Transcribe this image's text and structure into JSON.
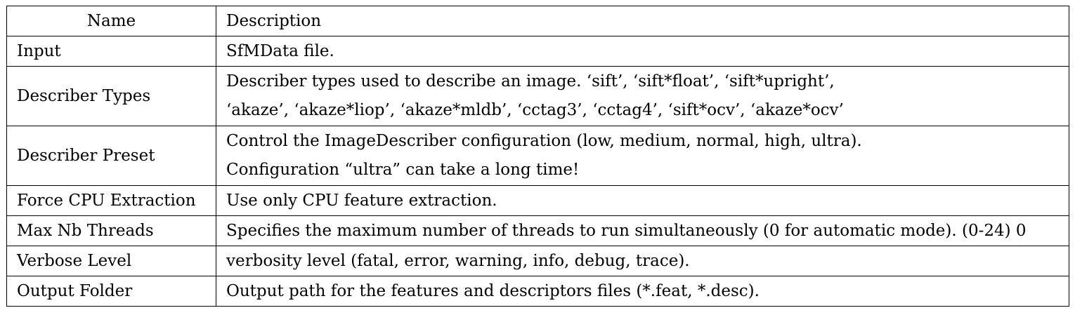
{
  "table": {
    "headers": {
      "name": "Name",
      "description": "Description"
    },
    "rows": [
      {
        "name": "Input",
        "desc": [
          "SfMData file."
        ]
      },
      {
        "name": "Describer Types",
        "desc": [
          "Describer types used to describe an image. ‘sift’, ‘sift*float’, ‘sift*upright’,",
          "‘akaze’, ‘akaze*liop’, ‘akaze*mldb’, ‘cctag3’, ‘cctag4’, ‘sift*ocv’, ‘akaze*ocv’"
        ]
      },
      {
        "name": "Describer Preset",
        "desc": [
          "Control the ImageDescriber configuration (low, medium, normal, high, ultra).",
          "Configuration “ultra” can take a long time!"
        ]
      },
      {
        "name": "Force CPU Extraction",
        "desc": [
          "Use only CPU feature extraction."
        ]
      },
      {
        "name": "Max Nb Threads",
        "desc": [
          "Specifies the maximum number of threads to run simultaneously (0 for automatic mode). (0-24) 0"
        ]
      },
      {
        "name": "Verbose Level",
        "desc": [
          "verbosity level (fatal, error, warning, info, debug, trace)."
        ]
      },
      {
        "name": "Output Folder",
        "desc": [
          "Output path for the features and descriptors files (*.feat, *.desc)."
        ]
      }
    ]
  }
}
